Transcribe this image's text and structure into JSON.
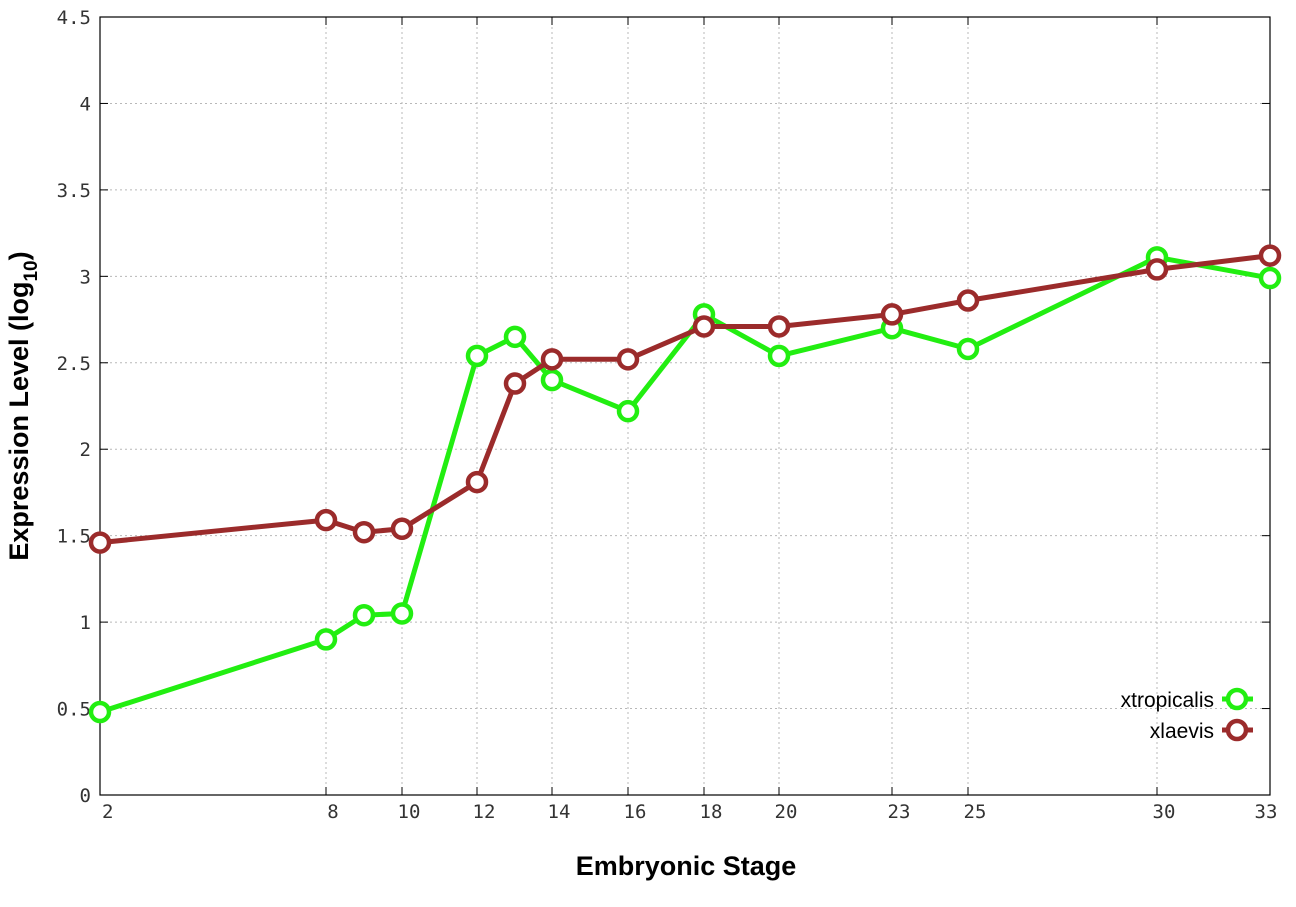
{
  "chart_data": {
    "type": "line",
    "title": "",
    "xlabel": "Embryonic Stage",
    "ylabel": "Expression Level (log",
    "ylabel_subscript": "10",
    "ylabel_suffix": ")",
    "x": [
      2,
      8,
      9,
      10,
      12,
      13,
      14,
      16,
      18,
      20,
      23,
      25,
      30,
      33
    ],
    "x_tick_labels": [
      "2",
      "8",
      "10",
      "12",
      "14",
      "16",
      "18",
      "20",
      "23",
      "25",
      "30",
      "33"
    ],
    "x_tick_values": [
      2,
      8,
      10,
      12,
      14,
      16,
      18,
      20,
      23,
      25,
      30,
      33
    ],
    "xlim": [
      2,
      33
    ],
    "ylim": [
      0,
      4.5
    ],
    "y_ticks": [
      0,
      0.5,
      1,
      1.5,
      2,
      2.5,
      3,
      3.5,
      4,
      4.5
    ],
    "y_tick_labels": [
      "0",
      "0.5",
      "1",
      "1.5",
      "2",
      "2.5",
      "3",
      "3.5",
      "4",
      "4.5"
    ],
    "grid": true,
    "legend_position": "bottom-right",
    "series": [
      {
        "name": "xtropicalis",
        "color": "#22ee11",
        "values": [
          0.48,
          0.9,
          1.04,
          1.05,
          2.54,
          2.65,
          2.4,
          2.22,
          2.78,
          2.54,
          2.7,
          2.58,
          3.11,
          2.99
        ]
      },
      {
        "name": "xlaevis",
        "color": "#9b2b2b",
        "values": [
          1.46,
          1.59,
          1.52,
          1.54,
          1.81,
          2.38,
          2.52,
          2.52,
          2.71,
          2.71,
          2.78,
          2.86,
          3.04,
          3.12
        ]
      }
    ]
  }
}
